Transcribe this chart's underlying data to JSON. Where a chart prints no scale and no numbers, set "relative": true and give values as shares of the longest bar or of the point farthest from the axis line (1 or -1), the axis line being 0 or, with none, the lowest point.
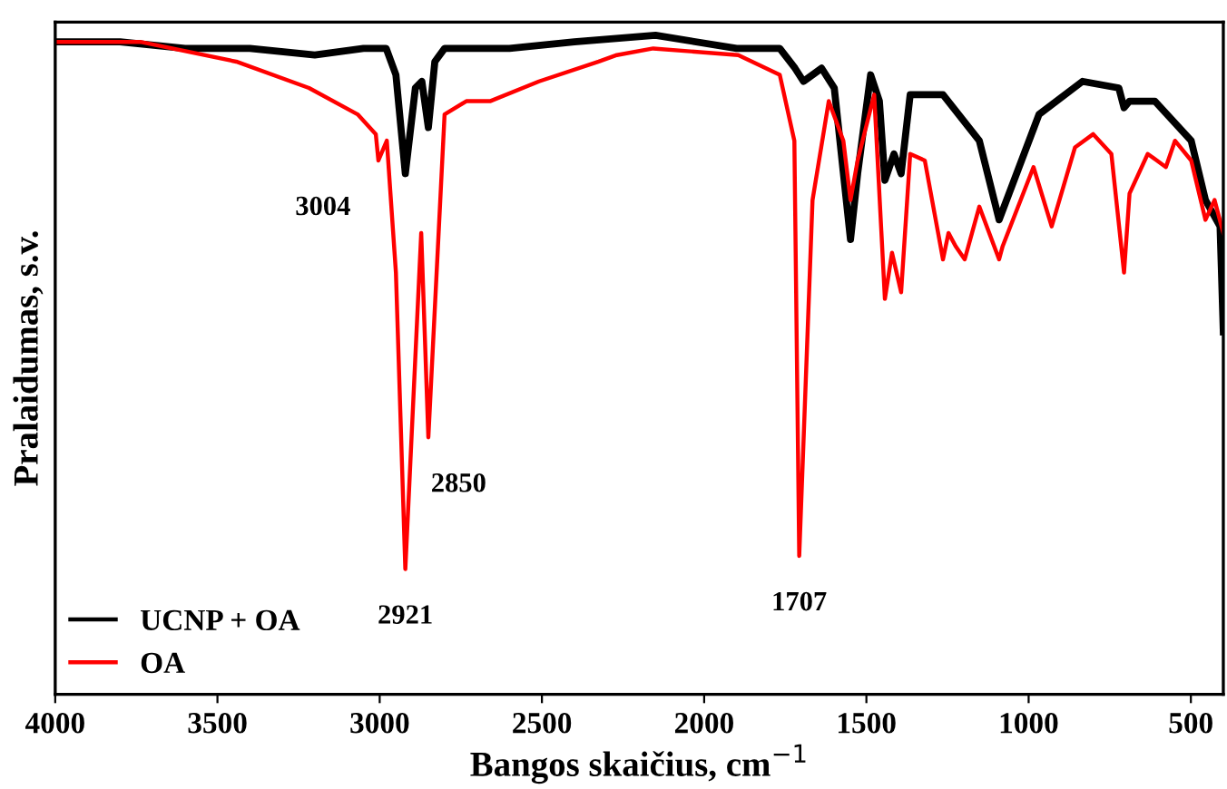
{
  "chart_data": {
    "type": "line",
    "xlabel": "Bangos skaičius, cm$^{−1}$",
    "ylabel": "Pralaidumas, s.v.",
    "relative": true,
    "xlim": [
      4000,
      400
    ],
    "xticks": [
      4000,
      3500,
      3000,
      2500,
      2000,
      1500,
      1000,
      500
    ],
    "tick_labels": "x",
    "legend": "bottom left",
    "grid": false,
    "marker": "none",
    "line_style": "solid",
    "series": [
      {
        "name": "UCNP + OA",
        "color": "#000000",
        "x": [
          4000,
          3800,
          3600,
          3400,
          3200,
          3050,
          2980,
          2950,
          2921,
          2890,
          2870,
          2850,
          2830,
          2800,
          2600,
          2400,
          2150,
          1900,
          1767,
          1720,
          1694,
          1638,
          1599,
          1549,
          1527,
          1487,
          1460,
          1443,
          1415,
          1393,
          1365,
          1264,
          1152,
          1091,
          968,
          834,
          722,
          706,
          689,
          611,
          499,
          455,
          410,
          400
        ],
        "values": [
          0.99,
          0.99,
          0.98,
          0.98,
          0.97,
          0.98,
          0.98,
          0.94,
          0.79,
          0.92,
          0.93,
          0.86,
          0.96,
          0.98,
          0.98,
          0.99,
          1.0,
          0.98,
          0.98,
          0.95,
          0.93,
          0.95,
          0.92,
          0.69,
          0.79,
          0.94,
          0.9,
          0.78,
          0.82,
          0.79,
          0.91,
          0.91,
          0.84,
          0.72,
          0.88,
          0.93,
          0.92,
          0.89,
          0.9,
          0.9,
          0.84,
          0.75,
          0.71,
          0.55
        ]
      },
      {
        "name": "OA",
        "color": "#ff0000",
        "x": [
          4000,
          3738,
          3442,
          3218,
          3068,
          3012,
          3004,
          2978,
          2950,
          2921,
          2872,
          2850,
          2800,
          2733,
          2660,
          2509,
          2325,
          2269,
          2157,
          1895,
          1767,
          1722,
          1707,
          1666,
          1616,
          1571,
          1549,
          1527,
          1476,
          1443,
          1421,
          1393,
          1365,
          1320,
          1264,
          1247,
          1225,
          1197,
          1152,
          1091,
          1080,
          985,
          929,
          857,
          801,
          745,
          706,
          689,
          633,
          577,
          549,
          499,
          455,
          427,
          400
        ],
        "values": [
          0.99,
          0.99,
          0.96,
          0.92,
          0.88,
          0.85,
          0.81,
          0.84,
          0.64,
          0.19,
          0.7,
          0.39,
          0.88,
          0.9,
          0.9,
          0.93,
          0.96,
          0.97,
          0.98,
          0.97,
          0.94,
          0.84,
          0.21,
          0.75,
          0.9,
          0.84,
          0.75,
          0.81,
          0.91,
          0.6,
          0.67,
          0.61,
          0.82,
          0.81,
          0.66,
          0.7,
          0.68,
          0.66,
          0.74,
          0.66,
          0.68,
          0.8,
          0.71,
          0.83,
          0.85,
          0.82,
          0.64,
          0.76,
          0.82,
          0.8,
          0.84,
          0.81,
          0.72,
          0.75,
          0.7
        ]
      }
    ],
    "annotations": [
      {
        "text": "3004",
        "x": 3004,
        "y": 0.81
      },
      {
        "text": "2921",
        "x": 2921,
        "y": 0.19
      },
      {
        "text": "2850",
        "x": 2850,
        "y": 0.39
      },
      {
        "text": "1707",
        "x": 1707,
        "y": 0.21
      }
    ]
  }
}
